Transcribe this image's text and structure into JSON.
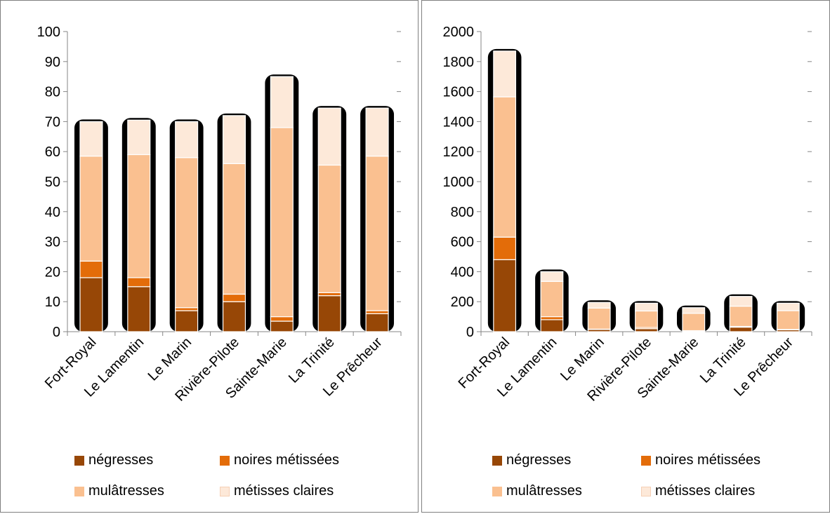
{
  "colors": {
    "negresses": "#974706",
    "noires_metissees": "#e36c09",
    "mulatresses": "#fac090",
    "metisses_claires": "#fde9d9",
    "axis": "#868686",
    "outline": "#000000"
  },
  "legend": {
    "items": [
      {
        "label": "négresses",
        "color": "#974706"
      },
      {
        "label": "noires métissées",
        "color": "#e36c09"
      },
      {
        "label": "mulâtresses",
        "color": "#fac090"
      },
      {
        "label": "métisses claires",
        "color": "#fde9d9"
      }
    ]
  },
  "chart_data": [
    {
      "type": "bar",
      "stacked": true,
      "title": "",
      "xlabel": "",
      "ylabel": "",
      "ylim": [
        0,
        100
      ],
      "yticks": [
        "0",
        "10",
        "20",
        "30",
        "40",
        "50",
        "60",
        "70",
        "80",
        "90",
        "100"
      ],
      "categories": [
        "Fort-Royal",
        "Le Lamentin",
        "Le Marin",
        "Rivière-Pilote",
        "Sainte-Marie",
        "La Trinité",
        "Le Prêcheur"
      ],
      "series": [
        {
          "name": "négresses",
          "values": [
            18,
            15,
            7,
            10,
            3.5,
            12,
            6
          ]
        },
        {
          "name": "noires métissées",
          "values": [
            5.5,
            3,
            1,
            2.5,
            1.5,
            1,
            1
          ]
        },
        {
          "name": "mulâtresses",
          "values": [
            35,
            41,
            50,
            43.5,
            63,
            42.5,
            51.5
          ]
        },
        {
          "name": "métisses claires",
          "values": [
            11.5,
            11.5,
            12,
            16,
            17,
            19,
            16
          ]
        }
      ],
      "grid": false,
      "legend_position": "bottom"
    },
    {
      "type": "bar",
      "stacked": true,
      "title": "",
      "xlabel": "",
      "ylabel": "",
      "ylim": [
        0,
        2000
      ],
      "yticks": [
        "0",
        "200",
        "400",
        "600",
        "800",
        "1000",
        "1200",
        "1400",
        "1600",
        "1800",
        "2000"
      ],
      "categories": [
        "Fort-Royal",
        "Le Lamentin",
        "Le Marin",
        "Rivière-Pilote",
        "Sainte-Marie",
        "La Trinité",
        "Le Prêcheur"
      ],
      "series": [
        {
          "name": "négresses",
          "values": [
            480,
            80,
            15,
            20,
            5,
            30,
            12
          ]
        },
        {
          "name": "noires métissées",
          "values": [
            150,
            20,
            2,
            8,
            2,
            5,
            3
          ]
        },
        {
          "name": "mulâtresses",
          "values": [
            935,
            235,
            140,
            110,
            115,
            135,
            125
          ]
        },
        {
          "name": "métisses claires",
          "values": [
            305,
            65,
            38,
            52,
            38,
            65,
            50
          ]
        }
      ],
      "grid": false,
      "legend_position": "bottom"
    }
  ]
}
